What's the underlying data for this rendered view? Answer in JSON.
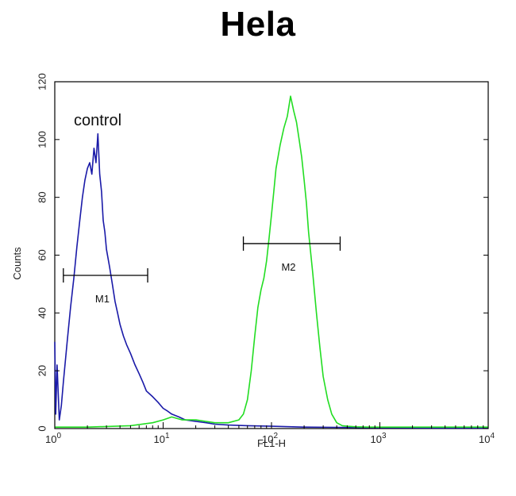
{
  "chart_data": {
    "type": "line",
    "title": "Hela",
    "xlabel": "FL1-H",
    "ylabel": "Counts",
    "x_scale": "log",
    "xlim": [
      1,
      10000
    ],
    "ylim": [
      0,
      120
    ],
    "x_ticks": [
      {
        "value": 1,
        "base": "10",
        "exp": "0"
      },
      {
        "value": 10,
        "base": "10",
        "exp": "1"
      },
      {
        "value": 100,
        "base": "10",
        "exp": "2"
      },
      {
        "value": 1000,
        "base": "10",
        "exp": "3"
      },
      {
        "value": 10000,
        "base": "10",
        "exp": "4"
      }
    ],
    "y_ticks": [
      0,
      20,
      40,
      60,
      80,
      100,
      120
    ],
    "grid": false,
    "series": [
      {
        "color": "#1a1aa8",
        "x": [
          1.0,
          1.02,
          1.05,
          1.1,
          1.15,
          1.2,
          1.3,
          1.4,
          1.5,
          1.6,
          1.7,
          1.8,
          1.9,
          2.0,
          2.1,
          2.2,
          2.3,
          2.4,
          2.5,
          2.6,
          2.7,
          2.8,
          2.9,
          3.0,
          3.2,
          3.4,
          3.6,
          3.8,
          4.0,
          4.3,
          4.6,
          5.0,
          5.5,
          6.0,
          6.5,
          7.0,
          8.0,
          9.0,
          10,
          11,
          12,
          14,
          16,
          20,
          25,
          30,
          40,
          60,
          100,
          200,
          400,
          1000,
          3000,
          10000
        ],
        "y": [
          30,
          5,
          22,
          3,
          8,
          16,
          30,
          42,
          52,
          63,
          72,
          80,
          86,
          90,
          92,
          88,
          97,
          92,
          102,
          88,
          82,
          72,
          68,
          62,
          56,
          50,
          44,
          40,
          36,
          32,
          29,
          26,
          22,
          19,
          16,
          13,
          11,
          9,
          7,
          6,
          5,
          4,
          3,
          2.5,
          2,
          1.5,
          1.2,
          1,
          0.8,
          0.5,
          0.4,
          0.3,
          0.2,
          0.2
        ]
      },
      {
        "color": "#22dd22",
        "x": [
          1.0,
          2.0,
          5.0,
          8.0,
          10,
          12,
          15,
          20,
          30,
          40,
          50,
          55,
          60,
          65,
          70,
          75,
          80,
          85,
          90,
          95,
          100,
          105,
          110,
          120,
          130,
          140,
          150,
          160,
          170,
          180,
          190,
          200,
          210,
          220,
          240,
          260,
          280,
          300,
          330,
          360,
          400,
          450,
          500,
          600,
          800,
          1000,
          2000,
          5000,
          10000
        ],
        "y": [
          0.5,
          0.5,
          1,
          2,
          3,
          4,
          3,
          3,
          2,
          2,
          3,
          5,
          10,
          20,
          32,
          42,
          48,
          52,
          58,
          66,
          74,
          82,
          90,
          98,
          104,
          108,
          115,
          110,
          106,
          100,
          94,
          86,
          78,
          68,
          54,
          40,
          28,
          18,
          10,
          5,
          2,
          1,
          0.8,
          0.6,
          0.5,
          0.5,
          0.5,
          0.5,
          0.5
        ]
      }
    ],
    "annotations": {
      "control_label": "control",
      "gates": [
        {
          "label": "M1",
          "x_start": 1.2,
          "x_end": 7.2,
          "y": 53
        },
        {
          "label": "M2",
          "x_start": 55,
          "x_end": 430,
          "y": 64
        }
      ]
    }
  }
}
